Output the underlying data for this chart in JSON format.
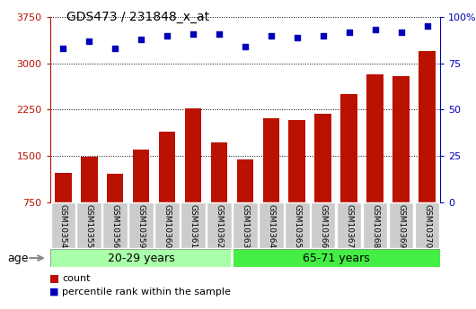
{
  "title": "GDS473 / 231848_x_at",
  "categories": [
    "GSM10354",
    "GSM10355",
    "GSM10356",
    "GSM10359",
    "GSM10360",
    "GSM10361",
    "GSM10362",
    "GSM10363",
    "GSM10364",
    "GSM10365",
    "GSM10366",
    "GSM10367",
    "GSM10368",
    "GSM10369",
    "GSM10370"
  ],
  "counts": [
    1230,
    1490,
    1210,
    1600,
    1900,
    2270,
    1720,
    1440,
    2110,
    2090,
    2190,
    2500,
    2820,
    2800,
    3200
  ],
  "percentile_ranks": [
    83,
    87,
    83,
    88,
    90,
    91,
    91,
    84,
    90,
    89,
    90,
    92,
    93,
    92,
    95
  ],
  "group1_label": "20-29 years",
  "group2_label": "65-71 years",
  "group1_count": 7,
  "group2_count": 8,
  "bar_color": "#bb1100",
  "dot_color": "#0000bb",
  "group1_bg": "#aaffaa",
  "group2_bg": "#44ee44",
  "xticklabel_bg": "#cccccc",
  "ylim_left": [
    750,
    3750
  ],
  "ylim_right": [
    0,
    100
  ],
  "yticks_left": [
    750,
    1500,
    2250,
    3000,
    3750
  ],
  "yticks_right": [
    0,
    25,
    50,
    75,
    100
  ],
  "legend_count_label": "count",
  "legend_pct_label": "percentile rank within the sample",
  "age_label": "age"
}
